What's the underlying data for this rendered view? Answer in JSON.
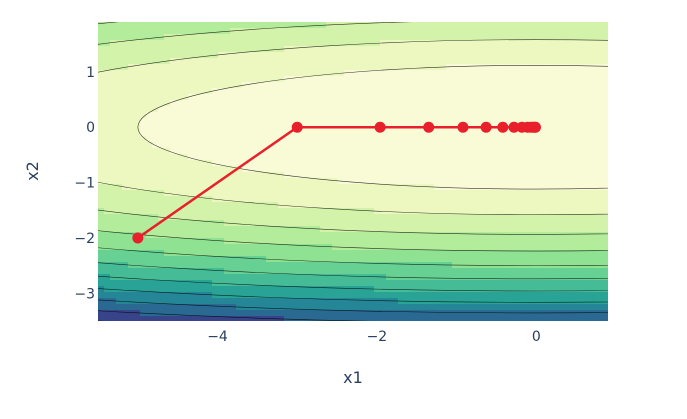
{
  "chart_data": {
    "type": "contour",
    "title": "",
    "xlabel": "x1",
    "ylabel": "x2",
    "xlim": [
      -5.5,
      0.9
    ],
    "ylim": [
      -3.5,
      1.9
    ],
    "x_ticks": [
      -4,
      -2,
      0
    ],
    "y_ticks": [
      -3,
      -2,
      -1,
      0,
      1
    ],
    "x_tick_labels": [
      "−4",
      "−2",
      "0"
    ],
    "y_tick_labels": [
      "−3",
      "−2",
      "−1",
      "0",
      "1"
    ],
    "grid": false,
    "legend": "none",
    "contour": {
      "function": "0.1*x1^2 + 2*x2^2",
      "colorscale": "viridis (light at minimum, dark at high values)",
      "line_color": "#000000",
      "levels": [
        2.5,
        5,
        7.5,
        10,
        12.5,
        15,
        17.5,
        20,
        22.5,
        25,
        27.5,
        30
      ]
    },
    "series": [
      {
        "type": "line+markers",
        "color": "#e8202c",
        "x": [
          -5,
          -3,
          -1.96,
          -1.35,
          -0.92,
          -0.63,
          -0.42,
          -0.28,
          -0.18,
          -0.11,
          -0.07,
          -0.04,
          -0.02,
          -0.01
        ],
        "y": [
          -2,
          0,
          0,
          0,
          0,
          0,
          0,
          0,
          0,
          0,
          0,
          0,
          0,
          0
        ]
      }
    ]
  }
}
